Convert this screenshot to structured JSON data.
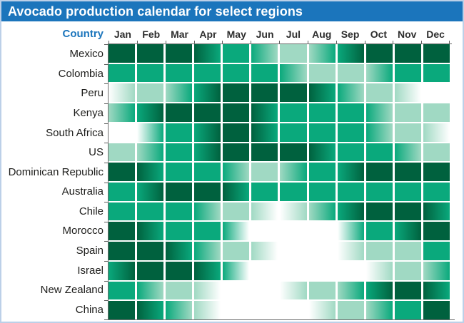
{
  "title": "Avocado production calendar for select regions",
  "header": {
    "country_label": "Country",
    "months": [
      "Jan",
      "Feb",
      "Mar",
      "Apr",
      "May",
      "Jun",
      "Jul",
      "Aug",
      "Sep",
      "Oct",
      "Nov",
      "Dec"
    ]
  },
  "colors": {
    "title_bar": "#1b75bc",
    "accent_blue": "#1b75bc",
    "frame_border": "#bcd0e8",
    "axis": "#5e5e5e",
    "gridline": "#ffffff",
    "label_text": "#1d1d1b",
    "scale": {
      "0": "#ffffff",
      "1": "#a0d9c3",
      "2": "#0aa97c",
      "3": "#00613e"
    }
  },
  "chart_data": {
    "type": "heatmap",
    "title": "Avocado production calendar for select regions",
    "x_labels": [
      "Jan",
      "Feb",
      "Mar",
      "Apr",
      "May",
      "Jun",
      "Jul",
      "Aug",
      "Sep",
      "Oct",
      "Nov",
      "Dec"
    ],
    "cell_value_format": "each cell = [intensity at left edge, intensity at right edge] of that month; gradient left-to-right",
    "value_legend": {
      "0": "white - no production",
      "1": "light green - low production",
      "2": "medium green - moderate production",
      "3": "dark green - peak production"
    },
    "legend_position": "none",
    "grid": true,
    "rows": [
      {
        "country": "Mexico",
        "cells": [
          [
            3,
            3
          ],
          [
            3,
            3
          ],
          [
            3,
            3
          ],
          [
            3,
            2
          ],
          [
            2,
            2
          ],
          [
            2,
            1
          ],
          [
            1,
            1
          ],
          [
            1,
            2
          ],
          [
            2,
            3
          ],
          [
            3,
            3
          ],
          [
            3,
            3
          ],
          [
            3,
            3
          ]
        ]
      },
      {
        "country": "Colombia",
        "cells": [
          [
            2,
            2
          ],
          [
            2,
            2
          ],
          [
            2,
            2
          ],
          [
            2,
            2
          ],
          [
            2,
            2
          ],
          [
            2,
            2
          ],
          [
            2,
            1
          ],
          [
            1,
            1
          ],
          [
            1,
            1
          ],
          [
            1,
            2
          ],
          [
            2,
            2
          ],
          [
            2,
            2
          ]
        ]
      },
      {
        "country": "Peru",
        "cells": [
          [
            0,
            1
          ],
          [
            1,
            1
          ],
          [
            1,
            2
          ],
          [
            2,
            3
          ],
          [
            3,
            3
          ],
          [
            3,
            3
          ],
          [
            3,
            3
          ],
          [
            3,
            2
          ],
          [
            2,
            1
          ],
          [
            1,
            1
          ],
          [
            1,
            0
          ],
          [
            0,
            0
          ]
        ]
      },
      {
        "country": "Kenya",
        "cells": [
          [
            1,
            2
          ],
          [
            2,
            3
          ],
          [
            3,
            3
          ],
          [
            3,
            3
          ],
          [
            3,
            3
          ],
          [
            3,
            2
          ],
          [
            2,
            2
          ],
          [
            2,
            2
          ],
          [
            2,
            2
          ],
          [
            2,
            1
          ],
          [
            1,
            1
          ],
          [
            1,
            1
          ]
        ]
      },
      {
        "country": "South Africa",
        "cells": [
          [
            0,
            0
          ],
          [
            0,
            2
          ],
          [
            2,
            2
          ],
          [
            2,
            3
          ],
          [
            3,
            3
          ],
          [
            3,
            2
          ],
          [
            2,
            2
          ],
          [
            2,
            2
          ],
          [
            2,
            2
          ],
          [
            2,
            1
          ],
          [
            1,
            1
          ],
          [
            1,
            0
          ]
        ]
      },
      {
        "country": "US",
        "cells": [
          [
            1,
            1
          ],
          [
            1,
            2
          ],
          [
            2,
            2
          ],
          [
            2,
            3
          ],
          [
            3,
            3
          ],
          [
            3,
            3
          ],
          [
            3,
            3
          ],
          [
            3,
            2
          ],
          [
            2,
            2
          ],
          [
            2,
            2
          ],
          [
            2,
            1
          ],
          [
            1,
            1
          ]
        ]
      },
      {
        "country": "Dominican Republic",
        "cells": [
          [
            3,
            3
          ],
          [
            3,
            2
          ],
          [
            2,
            2
          ],
          [
            2,
            2
          ],
          [
            2,
            1
          ],
          [
            1,
            1
          ],
          [
            1,
            2
          ],
          [
            2,
            2
          ],
          [
            2,
            3
          ],
          [
            3,
            3
          ],
          [
            3,
            3
          ],
          [
            3,
            3
          ]
        ]
      },
      {
        "country": "Australia",
        "cells": [
          [
            2,
            2
          ],
          [
            2,
            3
          ],
          [
            3,
            3
          ],
          [
            3,
            3
          ],
          [
            3,
            2
          ],
          [
            2,
            2
          ],
          [
            2,
            2
          ],
          [
            2,
            2
          ],
          [
            2,
            2
          ],
          [
            2,
            2
          ],
          [
            2,
            2
          ],
          [
            2,
            2
          ]
        ]
      },
      {
        "country": "Chile",
        "cells": [
          [
            2,
            2
          ],
          [
            2,
            2
          ],
          [
            2,
            2
          ],
          [
            2,
            1
          ],
          [
            1,
            1
          ],
          [
            1,
            0
          ],
          [
            0,
            1
          ],
          [
            1,
            2
          ],
          [
            2,
            3
          ],
          [
            3,
            3
          ],
          [
            3,
            3
          ],
          [
            3,
            2
          ]
        ]
      },
      {
        "country": "Morocco",
        "cells": [
          [
            3,
            3
          ],
          [
            3,
            2
          ],
          [
            2,
            2
          ],
          [
            2,
            2
          ],
          [
            2,
            0
          ],
          [
            0,
            0
          ],
          [
            0,
            0
          ],
          [
            0,
            0
          ],
          [
            0,
            2
          ],
          [
            2,
            2
          ],
          [
            2,
            3
          ],
          [
            3,
            3
          ]
        ]
      },
      {
        "country": "Spain",
        "cells": [
          [
            3,
            3
          ],
          [
            3,
            3
          ],
          [
            3,
            2
          ],
          [
            2,
            1
          ],
          [
            1,
            1
          ],
          [
            1,
            0
          ],
          [
            0,
            0
          ],
          [
            0,
            0
          ],
          [
            0,
            1
          ],
          [
            1,
            1
          ],
          [
            1,
            1
          ],
          [
            2,
            2
          ]
        ]
      },
      {
        "country": "Israel",
        "cells": [
          [
            2,
            3
          ],
          [
            3,
            3
          ],
          [
            3,
            3
          ],
          [
            3,
            2
          ],
          [
            2,
            0
          ],
          [
            0,
            0
          ],
          [
            0,
            0
          ],
          [
            0,
            0
          ],
          [
            0,
            0
          ],
          [
            0,
            1
          ],
          [
            1,
            1
          ],
          [
            1,
            2
          ]
        ]
      },
      {
        "country": "New Zealand",
        "cells": [
          [
            2,
            2
          ],
          [
            2,
            1
          ],
          [
            1,
            1
          ],
          [
            1,
            0
          ],
          [
            0,
            0
          ],
          [
            0,
            0
          ],
          [
            0,
            1
          ],
          [
            1,
            1
          ],
          [
            1,
            2
          ],
          [
            2,
            3
          ],
          [
            3,
            3
          ],
          [
            3,
            2
          ]
        ]
      },
      {
        "country": "China",
        "cells": [
          [
            3,
            3
          ],
          [
            3,
            2
          ],
          [
            2,
            1
          ],
          [
            1,
            0
          ],
          [
            0,
            0
          ],
          [
            0,
            0
          ],
          [
            0,
            0
          ],
          [
            0,
            1
          ],
          [
            1,
            1
          ],
          [
            1,
            2
          ],
          [
            2,
            2
          ],
          [
            3,
            3
          ]
        ]
      }
    ]
  }
}
